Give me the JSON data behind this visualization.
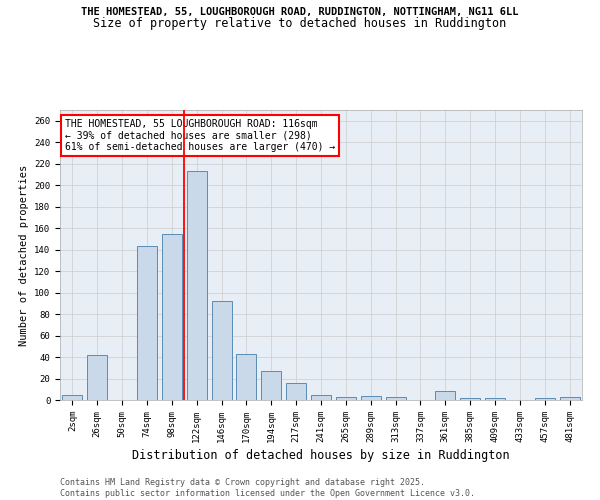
{
  "title_line1": "THE HOMESTEAD, 55, LOUGHBOROUGH ROAD, RUDDINGTON, NOTTINGHAM, NG11 6LL",
  "title_line2": "Size of property relative to detached houses in Ruddington",
  "xlabel": "Distribution of detached houses by size in Ruddington",
  "ylabel": "Number of detached properties",
  "categories": [
    "2sqm",
    "26sqm",
    "50sqm",
    "74sqm",
    "98sqm",
    "122sqm",
    "146sqm",
    "170sqm",
    "194sqm",
    "217sqm",
    "241sqm",
    "265sqm",
    "289sqm",
    "313sqm",
    "337sqm",
    "361sqm",
    "385sqm",
    "409sqm",
    "433sqm",
    "457sqm",
    "481sqm"
  ],
  "values": [
    5,
    42,
    0,
    143,
    155,
    213,
    92,
    43,
    27,
    16,
    5,
    3,
    4,
    3,
    0,
    8,
    2,
    2,
    0,
    2,
    3
  ],
  "bar_color": "#c9d9ea",
  "bar_edge_color": "#5a8db5",
  "vline_color": "red",
  "vline_x": 4.5,
  "annotation_text": "THE HOMESTEAD, 55 LOUGHBOROUGH ROAD: 116sqm\n← 39% of detached houses are smaller (298)\n61% of semi-detached houses are larger (470) →",
  "annotation_box_color": "white",
  "annotation_box_edge_color": "red",
  "ylim": [
    0,
    270
  ],
  "yticks": [
    0,
    20,
    40,
    60,
    80,
    100,
    120,
    140,
    160,
    180,
    200,
    220,
    240,
    260
  ],
  "grid_color": "#cccccc",
  "background_color": "#e8eef5",
  "footer_text": "Contains HM Land Registry data © Crown copyright and database right 2025.\nContains public sector information licensed under the Open Government Licence v3.0.",
  "title_fontsize": 7.5,
  "subtitle_fontsize": 8.5,
  "ylabel_fontsize": 7.5,
  "xlabel_fontsize": 8.5,
  "tick_fontsize": 6.5,
  "annotation_fontsize": 7,
  "footer_fontsize": 6
}
